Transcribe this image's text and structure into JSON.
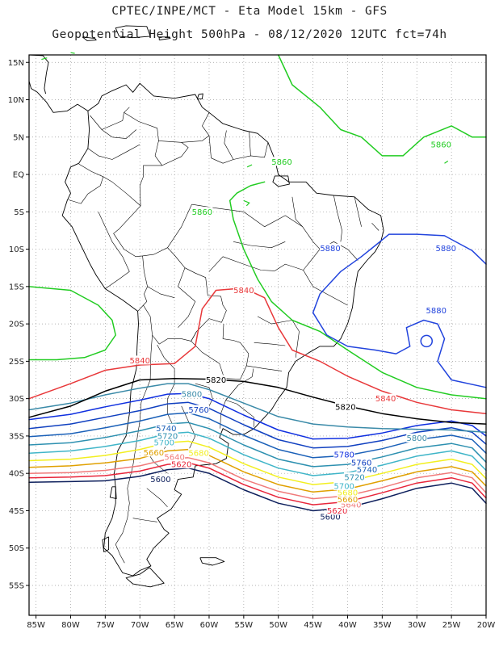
{
  "header": {
    "line1": "CPTEC/INPE/MCT -  Eta Model 15km - GFS",
    "line2": "Geopotential Height 500hPa - 08/12/2020 12UTC fct=74h"
  },
  "axes": {
    "lat_labels": [
      "15N",
      "10N",
      "5N",
      "EQ",
      "5S",
      "10S",
      "15S",
      "20S",
      "25S",
      "30S",
      "35S",
      "40S",
      "45S",
      "50S",
      "55S"
    ],
    "lat_values": [
      15,
      10,
      5,
      0,
      -5,
      -10,
      -15,
      -20,
      -25,
      -30,
      -35,
      -40,
      -45,
      -50,
      -55
    ],
    "lon_labels": [
      "85W",
      "80W",
      "75W",
      "70W",
      "65W",
      "60W",
      "55W",
      "50W",
      "45W",
      "40W",
      "35W",
      "30W",
      "25W",
      "20W"
    ],
    "lon_values": [
      -85,
      -80,
      -75,
      -70,
      -65,
      -60,
      -55,
      -50,
      -45,
      -40,
      -35,
      -30,
      -25,
      -20
    ],
    "lon_range": [
      -86,
      -20
    ],
    "lat_range": [
      -59,
      16
    ],
    "grid": "dotted"
  },
  "colors": {
    "c5600": "#0d1f5c",
    "c5620": "#e8253a",
    "c5640": "#f07a7a",
    "c5660": "#e0a000",
    "c5680": "#f2ef20",
    "c5700": "#3fb5c8",
    "c5720": "#2d90b0",
    "c5740": "#1a60b8",
    "c5760": "#1040c0",
    "c5780": "#1030e0",
    "c5800": "#3a8aa8",
    "c5820": "#000000",
    "c5840": "#e8383a",
    "c5860": "#22cc22",
    "c5880": "#2244dd",
    "coast": "#000000",
    "land_green": "#22cc22"
  },
  "contours": [
    {
      "value": 5600,
      "label": "5600",
      "color": "#0d1f5c",
      "points": [
        [
          -86,
          -41.2
        ],
        [
          -80,
          -41.1
        ],
        [
          -75,
          -41
        ],
        [
          -70,
          -40.4
        ],
        [
          -66,
          -39.5
        ],
        [
          -63,
          -39.3
        ],
        [
          -60,
          -40
        ],
        [
          -55,
          -42.2
        ],
        [
          -50,
          -44
        ],
        [
          -45,
          -45
        ],
        [
          -40,
          -44.6
        ],
        [
          -35,
          -43.4
        ],
        [
          -30,
          -42
        ],
        [
          -25,
          -41.3
        ],
        [
          -22,
          -42
        ],
        [
          -20,
          -44
        ]
      ],
      "labels": [
        [
          -67,
          -40.8
        ],
        [
          -42.5,
          -45.8
        ]
      ]
    },
    {
      "value": 5620,
      "label": "5620",
      "color": "#e8253a",
      "points": [
        [
          -86,
          -40.6
        ],
        [
          -80,
          -40.5
        ],
        [
          -75,
          -40.3
        ],
        [
          -70,
          -39.7
        ],
        [
          -66,
          -38.8
        ],
        [
          -63,
          -38.6
        ],
        [
          -60,
          -39.3
        ],
        [
          -55,
          -41.5
        ],
        [
          -50,
          -43.2
        ],
        [
          -45,
          -44.2
        ],
        [
          -40,
          -43.8
        ],
        [
          -35,
          -42.6
        ],
        [
          -30,
          -41.3
        ],
        [
          -25,
          -40.6
        ],
        [
          -22,
          -41.3
        ],
        [
          -20,
          -43.3
        ]
      ],
      "labels": [
        [
          -64,
          -38.8
        ],
        [
          -41.5,
          -45
        ]
      ]
    },
    {
      "value": 5640,
      "label": "5640",
      "color": "#f07a7a",
      "points": [
        [
          -86,
          -40
        ],
        [
          -80,
          -39.9
        ],
        [
          -75,
          -39.6
        ],
        [
          -70,
          -39
        ],
        [
          -66,
          -38.1
        ],
        [
          -63,
          -37.9
        ],
        [
          -60,
          -38.6
        ],
        [
          -55,
          -40.8
        ],
        [
          -50,
          -42.4
        ],
        [
          -45,
          -43.4
        ],
        [
          -40,
          -43
        ],
        [
          -35,
          -41.9
        ],
        [
          -30,
          -40.6
        ],
        [
          -25,
          -39.9
        ],
        [
          -22,
          -40.6
        ],
        [
          -20,
          -42.6
        ]
      ],
      "labels": [
        [
          -65,
          -37.8
        ],
        [
          -39.5,
          -44.2
        ]
      ]
    },
    {
      "value": 5660,
      "label": "5660",
      "color": "#e0a000",
      "points": [
        [
          -86,
          -39.2
        ],
        [
          -80,
          -39
        ],
        [
          -75,
          -38.6
        ],
        [
          -70,
          -38
        ],
        [
          -66,
          -37
        ],
        [
          -63,
          -36.8
        ],
        [
          -60,
          -37.6
        ],
        [
          -55,
          -39.8
        ],
        [
          -50,
          -41.5
        ],
        [
          -45,
          -42.5
        ],
        [
          -40,
          -42.1
        ],
        [
          -35,
          -41
        ],
        [
          -30,
          -39.8
        ],
        [
          -25,
          -39.1
        ],
        [
          -22,
          -39.8
        ],
        [
          -20,
          -41.7
        ]
      ],
      "labels": [
        [
          -68,
          -37.2
        ],
        [
          -40,
          -43.5
        ]
      ]
    },
    {
      "value": 5680,
      "label": "5680",
      "color": "#f2ef20",
      "points": [
        [
          -86,
          -38.3
        ],
        [
          -80,
          -38.1
        ],
        [
          -75,
          -37.6
        ],
        [
          -70,
          -36.8
        ],
        [
          -66,
          -35.9
        ],
        [
          -63,
          -35.7
        ],
        [
          -60,
          -36.5
        ],
        [
          -55,
          -38.7
        ],
        [
          -50,
          -40.5
        ],
        [
          -45,
          -41.5
        ],
        [
          -40,
          -41.1
        ],
        [
          -35,
          -40
        ],
        [
          -30,
          -38.8
        ],
        [
          -25,
          -38.1
        ],
        [
          -22,
          -38.8
        ],
        [
          -20,
          -40.7
        ]
      ],
      "labels": [
        [
          -61.5,
          -37.3
        ],
        [
          -40,
          -42.6
        ]
      ]
    },
    {
      "value": 5700,
      "label": "5700",
      "color": "#3fb5c8",
      "points": [
        [
          -86,
          -37.3
        ],
        [
          -80,
          -37
        ],
        [
          -75,
          -36.4
        ],
        [
          -70,
          -35.6
        ],
        [
          -66,
          -34.7
        ],
        [
          -63,
          -34.5
        ],
        [
          -60,
          -35.3
        ],
        [
          -55,
          -37.5
        ],
        [
          -50,
          -39.3
        ],
        [
          -45,
          -40.3
        ],
        [
          -40,
          -39.9
        ],
        [
          -35,
          -38.9
        ],
        [
          -30,
          -37.7
        ],
        [
          -25,
          -37
        ],
        [
          -22,
          -37.7
        ],
        [
          -20,
          -39.6
        ]
      ],
      "labels": [
        [
          -66.5,
          -35.9
        ],
        [
          -40.5,
          -41.7
        ]
      ]
    },
    {
      "value": 5720,
      "label": "5720",
      "color": "#2d90b0",
      "points": [
        [
          -86,
          -36.2
        ],
        [
          -80,
          -35.9
        ],
        [
          -75,
          -35.2
        ],
        [
          -70,
          -34.3
        ],
        [
          -66,
          -33.4
        ],
        [
          -63,
          -33.2
        ],
        [
          -60,
          -34
        ],
        [
          -55,
          -36.2
        ],
        [
          -50,
          -38.1
        ],
        [
          -45,
          -39.1
        ],
        [
          -40,
          -38.8
        ],
        [
          -35,
          -37.8
        ],
        [
          -30,
          -36.6
        ],
        [
          -25,
          -36
        ],
        [
          -22,
          -36.6
        ],
        [
          -20,
          -38.5
        ]
      ],
      "labels": [
        [
          -66,
          -35
        ],
        [
          -39,
          -40.5
        ]
      ]
    },
    {
      "value": 5740,
      "label": "5740",
      "color": "#1a60b8",
      "points": [
        [
          -86,
          -35.1
        ],
        [
          -80,
          -34.7
        ],
        [
          -75,
          -33.9
        ],
        [
          -70,
          -33
        ],
        [
          -66,
          -32.1
        ],
        [
          -63,
          -31.9
        ],
        [
          -60,
          -32.7
        ],
        [
          -55,
          -34.9
        ],
        [
          -50,
          -36.8
        ],
        [
          -45,
          -37.9
        ],
        [
          -40,
          -37.6
        ],
        [
          -35,
          -36.7
        ],
        [
          -30,
          -35.5
        ],
        [
          -25,
          -34.9
        ],
        [
          -22,
          -35.5
        ],
        [
          -20,
          -37.3
        ]
      ],
      "labels": [
        [
          -66.2,
          -34
        ],
        [
          -37.2,
          -39.5
        ]
      ]
    },
    {
      "value": 5760,
      "label": "5760",
      "color": "#1040c0",
      "points": [
        [
          -86,
          -34
        ],
        [
          -80,
          -33.4
        ],
        [
          -75,
          -32.5
        ],
        [
          -70,
          -31.6
        ],
        [
          -66,
          -30.7
        ],
        [
          -63,
          -30.5
        ],
        [
          -60,
          -31.3
        ],
        [
          -55,
          -33.5
        ],
        [
          -50,
          -35.5
        ],
        [
          -45,
          -36.6
        ],
        [
          -40,
          -36.4
        ],
        [
          -35,
          -35.6
        ],
        [
          -30,
          -34.5
        ],
        [
          -25,
          -33.9
        ],
        [
          -22,
          -34.5
        ],
        [
          -20,
          -36.1
        ]
      ],
      "labels": [
        [
          -61.5,
          -31.5
        ],
        [
          -38,
          -38.6
        ]
      ]
    },
    {
      "value": 5780,
      "label": "5780",
      "color": "#1030e0",
      "points": [
        [
          -86,
          -32.8
        ],
        [
          -80,
          -32.1
        ],
        [
          -75,
          -31.1
        ],
        [
          -70,
          -30.2
        ],
        [
          -66,
          -29.4
        ],
        [
          -63,
          -29.3
        ],
        [
          -60,
          -30
        ],
        [
          -55,
          -32.2
        ],
        [
          -50,
          -34.2
        ],
        [
          -45,
          -35.4
        ],
        [
          -40,
          -35.3
        ],
        [
          -35,
          -34.6
        ],
        [
          -30,
          -33.6
        ],
        [
          -25,
          -33
        ],
        [
          -22,
          -33.6
        ],
        [
          -20,
          -35
        ]
      ],
      "labels": [
        [
          -40.5,
          -37.5
        ]
      ]
    },
    {
      "value": 5800,
      "label": "5800",
      "color": "#3a8aa8",
      "points": [
        [
          -86,
          -31.5
        ],
        [
          -80,
          -30.6
        ],
        [
          -75,
          -29.5
        ],
        [
          -70,
          -28.6
        ],
        [
          -66,
          -28
        ],
        [
          -63,
          -28
        ],
        [
          -60,
          -28.8
        ],
        [
          -55,
          -30.6
        ],
        [
          -50,
          -32.4
        ],
        [
          -45,
          -33.4
        ],
        [
          -40,
          -33.8
        ],
        [
          -35,
          -34
        ],
        [
          -30,
          -34.1
        ],
        [
          -25,
          -34.2
        ],
        [
          -20,
          -34.5
        ]
      ],
      "labels": [
        [
          -62.5,
          -29.4
        ],
        [
          -30,
          -35.3
        ]
      ]
    },
    {
      "value": 5820,
      "label": "5820",
      "color": "#000000",
      "points": [
        [
          -86,
          -32.5
        ],
        [
          -80,
          -31
        ],
        [
          -75,
          -29
        ],
        [
          -70,
          -27.5
        ],
        [
          -65,
          -27.3
        ],
        [
          -60,
          -27.4
        ],
        [
          -55,
          -27.7
        ],
        [
          -50,
          -28.5
        ],
        [
          -45,
          -29.8
        ],
        [
          -40,
          -31
        ],
        [
          -35,
          -32
        ],
        [
          -30,
          -32.7
        ],
        [
          -25,
          -33.2
        ],
        [
          -20,
          -33.4
        ]
      ],
      "labels": [
        [
          -59,
          -27.5
        ],
        [
          -40.3,
          -31.1
        ]
      ]
    },
    {
      "value": 5840,
      "label": "5840",
      "color": "#e8383a",
      "points": [
        [
          -86,
          -30
        ],
        [
          -80,
          -28
        ],
        [
          -75,
          -26.2
        ],
        [
          -70,
          -25.5
        ],
        [
          -65,
          -25.3
        ],
        [
          -62,
          -23
        ],
        [
          -61,
          -18
        ],
        [
          -59,
          -15.5
        ],
        [
          -55,
          -15.2
        ],
        [
          -52,
          -16.5
        ],
        [
          -50,
          -20.5
        ],
        [
          -48,
          -23.5
        ],
        [
          -44,
          -25
        ],
        [
          -40,
          -27
        ],
        [
          -35,
          -29
        ],
        [
          -30,
          -30.5
        ],
        [
          -25,
          -31.5
        ],
        [
          -20,
          -32
        ]
      ],
      "labels": [
        [
          -55,
          -15.5
        ],
        [
          -70,
          -24.9
        ],
        [
          -34.5,
          -30
        ]
      ]
    },
    {
      "value": 5860,
      "label": "5860",
      "color": "#22cc22",
      "points": [
        [
          -50,
          16
        ],
        [
          -48,
          12
        ],
        [
          -44,
          9
        ],
        [
          -41,
          6
        ],
        [
          -38,
          5
        ],
        [
          -35,
          2.5
        ],
        [
          -32,
          2.5
        ],
        [
          -29,
          5
        ],
        [
          -25,
          6.5
        ],
        [
          -22,
          5
        ],
        [
          -20,
          5
        ]
      ],
      "labels": [
        [
          -26.5,
          4
        ]
      ]
    },
    {
      "value": 5860,
      "label": "5860",
      "color": "#22cc22",
      "points": [
        [
          -52,
          -1
        ],
        [
          -54,
          -1.5
        ],
        [
          -56,
          -2.5
        ],
        [
          -57,
          -3.5
        ],
        [
          -56.5,
          -6
        ],
        [
          -55,
          -10
        ],
        [
          -53,
          -14
        ],
        [
          -51,
          -17
        ],
        [
          -48,
          -19.5
        ],
        [
          -44,
          -21
        ],
        [
          -40,
          -23.5
        ],
        [
          -35,
          -26.5
        ],
        [
          -30,
          -28.5
        ],
        [
          -25,
          -29.5
        ],
        [
          -20,
          -30
        ]
      ],
      "labels": [
        [
          -49.5,
          1.7
        ],
        [
          -61,
          -5
        ]
      ]
    },
    {
      "value": 5860,
      "label": "5860",
      "color": "#22cc22",
      "points": [
        [
          -86,
          -15
        ],
        [
          -80,
          -15.5
        ],
        [
          -76,
          -17.5
        ],
        [
          -74,
          -19.5
        ],
        [
          -73.5,
          -21.5
        ],
        [
          -75,
          -23.5
        ],
        [
          -78,
          -24.5
        ],
        [
          -82,
          -24.8
        ],
        [
          -86,
          -24.8
        ]
      ],
      "labels": []
    },
    {
      "value": 5880,
      "label": "5880",
      "color": "#2244dd",
      "points": [
        [
          -38,
          -11
        ],
        [
          -41,
          -13
        ],
        [
          -44,
          -16
        ],
        [
          -45,
          -18.5
        ],
        [
          -43,
          -21.5
        ],
        [
          -40,
          -23
        ],
        [
          -36,
          -23.5
        ],
        [
          -33,
          -24
        ],
        [
          -31,
          -23
        ],
        [
          -31.5,
          -20.5
        ],
        [
          -29,
          -19.5
        ],
        [
          -27,
          -20
        ],
        [
          -26,
          -22
        ],
        [
          -27,
          -25
        ],
        [
          -25,
          -27.5
        ],
        [
          -20,
          -28.5
        ]
      ],
      "labels": [
        [
          -42.5,
          -9.9
        ],
        [
          -27.2,
          -18.2
        ]
      ]
    },
    {
      "value": 5880,
      "label": "5880",
      "color": "#2244dd",
      "points": [
        [
          -38,
          -11
        ],
        [
          -36,
          -9.5
        ],
        [
          -34,
          -8
        ],
        [
          -30,
          -8
        ],
        [
          -26,
          -8.2
        ],
        [
          -22,
          -10.2
        ],
        [
          -20,
          -12
        ]
      ],
      "labels": [
        [
          -25.8,
          -9.9
        ]
      ]
    }
  ]
}
